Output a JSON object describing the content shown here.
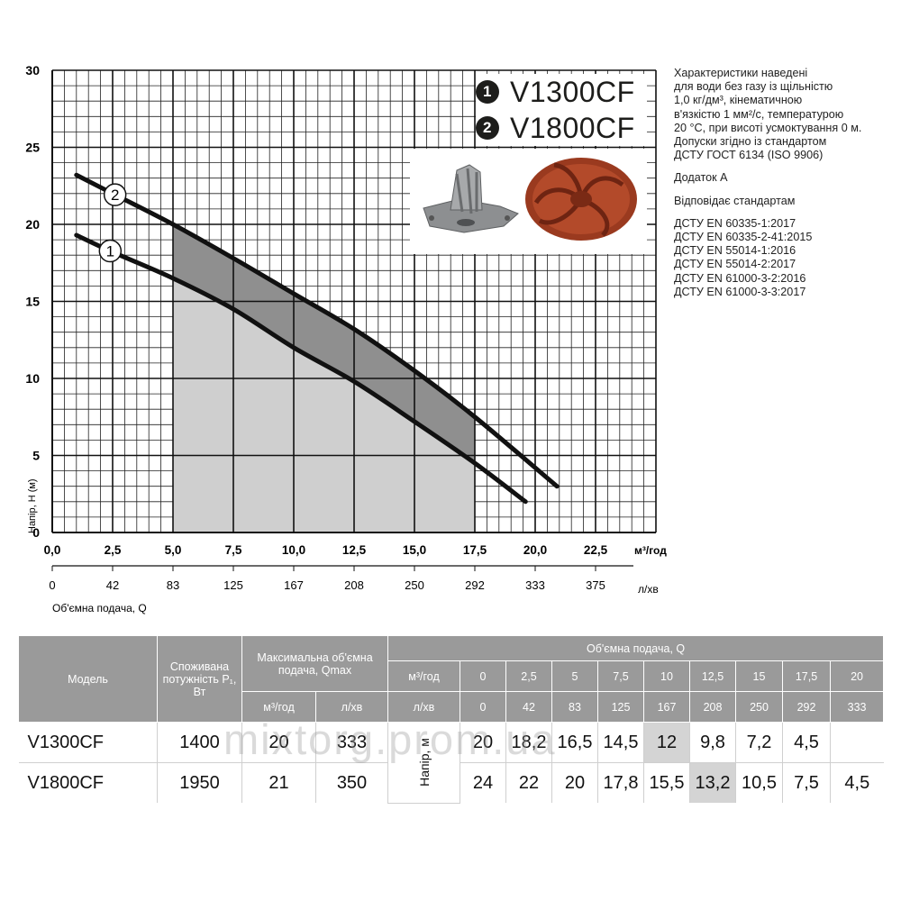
{
  "chart_data": {
    "type": "line",
    "xlabel": "м³/год",
    "xlabel_secondary": "л/хв",
    "ylabel": "Напір, H (м)",
    "x_caption": "Об'ємна подача, Q",
    "xlim": [
      0,
      25
    ],
    "ylim": [
      0,
      30
    ],
    "x_ticks": [
      "0,0",
      "2,5",
      "5,0",
      "7,5",
      "10,0",
      "12,5",
      "15,0",
      "17,5",
      "20,0",
      "22,5"
    ],
    "x_ticks_lpm": [
      "0",
      "42",
      "83",
      "125",
      "167",
      "208",
      "250",
      "292",
      "333",
      "375"
    ],
    "y_ticks": [
      "0",
      "5",
      "10",
      "15",
      "20",
      "25",
      "30"
    ],
    "grid": true,
    "series": [
      {
        "name": "1",
        "x": [
          1,
          2.5,
          5,
          7.5,
          10,
          12.5,
          15,
          17.5,
          19.6
        ],
        "y": [
          19.3,
          18.2,
          16.5,
          14.5,
          12,
          9.8,
          7.2,
          4.5,
          2
        ]
      },
      {
        "name": "2",
        "x": [
          1,
          2.5,
          5,
          7.5,
          10,
          12.5,
          15,
          17.5,
          20.9
        ],
        "y": [
          23.2,
          22,
          20,
          17.8,
          15.5,
          13.2,
          10.5,
          7.5,
          3
        ]
      }
    ],
    "working_range": [
      5,
      17.5
    ]
  },
  "legend": {
    "items": [
      {
        "num": "1",
        "label": "V1300CF"
      },
      {
        "num": "2",
        "label": "V1800CF"
      }
    ]
  },
  "notes": {
    "lines1": [
      "Характеристики наведені",
      "для води без газу із щільністю",
      "1,0 кг/дм³, кінематичною",
      "в'язкістю 1 мм²/с, температурою",
      "20 °С, при висоті усмоктування 0 м.",
      "Допуски згідно із стандартом",
      "ДСТУ ГОСТ 6134 (ISO 9906)"
    ],
    "lines2": [
      "Додаток А"
    ],
    "lines3": [
      "Відповідає стандартам"
    ],
    "lines4": [
      "ДСТУ EN 60335-1:2017",
      "ДСТУ EN 60335-2-41:2015",
      "ДСТУ EN 55014-1:2016",
      "ДСТУ EN 55014-2:2017",
      "ДСТУ EN 61000-3-2:2016",
      "ДСТУ EN 61000-3-3:2017"
    ]
  },
  "table": {
    "h_model": "Модель",
    "h_power": "Споживана потужність P₁, Вт",
    "h_qmax": "Максимальна об'ємна подача, Qmax",
    "h_qmax_m3": "м³/год",
    "h_qmax_lpm": "л/хв",
    "h_flow": "Об'ємна подача, Q",
    "h_flow_m3": "м³/год",
    "h_flow_lpm": "л/хв",
    "flow_m3": [
      "0",
      "2,5",
      "5",
      "7,5",
      "10",
      "12,5",
      "15",
      "17,5",
      "20"
    ],
    "flow_lpm": [
      "0",
      "42",
      "83",
      "125",
      "167",
      "208",
      "250",
      "292",
      "333"
    ],
    "head_label": "Напір, м",
    "rows": [
      {
        "model": "V1300CF",
        "power": "1400",
        "qmax_m3": "20",
        "qmax_lpm": "333",
        "heads": [
          "20",
          "18,2",
          "16,5",
          "14,5",
          "12",
          "9,8",
          "7,2",
          "4,5",
          ""
        ]
      },
      {
        "model": "V1800CF",
        "power": "1950",
        "qmax_m3": "21",
        "qmax_lpm": "350",
        "heads": [
          "24",
          "22",
          "20",
          "17,8",
          "15,5",
          "13,2",
          "10,5",
          "7,5",
          "4,5"
        ]
      }
    ]
  },
  "watermark": "mixtorg.prom.ua",
  "colors": {
    "curve": "#111111",
    "shade_light": "#cfcfcf",
    "shade_dark": "#8f8f8f",
    "header": "#9a9a9a",
    "highlight": "#d4d4d4"
  }
}
